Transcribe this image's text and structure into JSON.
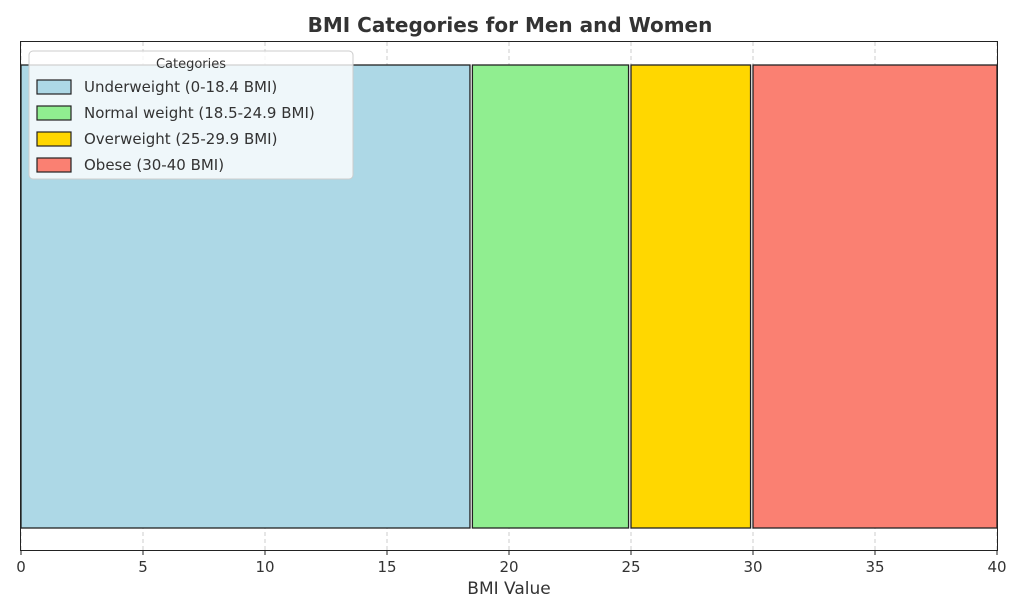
{
  "chart_data": {
    "type": "bar",
    "orientation": "horizontal-stacked",
    "title": "BMI Categories for Men and Women",
    "xlabel": "BMI Value",
    "ylabel": "",
    "xlim": [
      0,
      40
    ],
    "xticks": [
      0,
      5,
      10,
      15,
      20,
      25,
      30,
      35,
      40
    ],
    "grid": true,
    "legend_title": "Categories",
    "legend_position": "top-left",
    "series": [
      {
        "name": "Underweight (0-18.4 BMI)",
        "start": 0,
        "end": 18.4,
        "color": "#add8e6"
      },
      {
        "name": "Normal weight (18.5-24.9 BMI)",
        "start": 18.5,
        "end": 24.9,
        "color": "#90ee90"
      },
      {
        "name": "Overweight (25-29.9 BMI)",
        "start": 25,
        "end": 29.9,
        "color": "#ffd700"
      },
      {
        "name": "Obese (30-40 BMI)",
        "start": 30,
        "end": 40,
        "color": "#fa8072"
      }
    ]
  }
}
